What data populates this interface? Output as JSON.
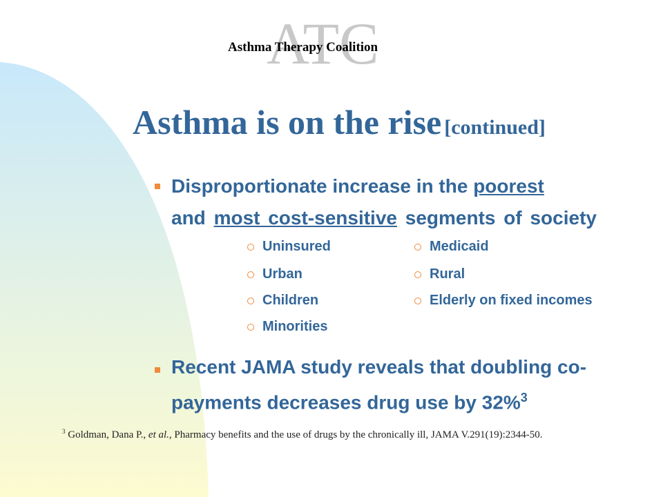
{
  "header": {
    "logo": "ATC",
    "organization": "Asthma Therapy Coalition"
  },
  "title": {
    "main": "Asthma is on the rise",
    "suffix": "[continued]"
  },
  "bullets": [
    {
      "parts": [
        "Disproportionate increase in the",
        "poorest",
        "and",
        "most cost-sensitive",
        "segments of society"
      ],
      "sub_items": {
        "left": [
          "Uninsured",
          "Urban",
          "Children",
          "Minorities"
        ],
        "right": [
          "Medicaid",
          "Rural",
          "Elderly on fixed incomes"
        ]
      }
    },
    {
      "text": "Recent JAMA study reveals that doubling co-payments decreases drug use by 32%",
      "superscript": "3"
    }
  ],
  "footnote": {
    "marker": "3",
    "author": "Goldman, Dana P.,",
    "etal": "et al.,",
    "citation": "Pharmacy benefits and the use of drugs by the chronically ill, JAMA V.291(19):2344-50."
  }
}
